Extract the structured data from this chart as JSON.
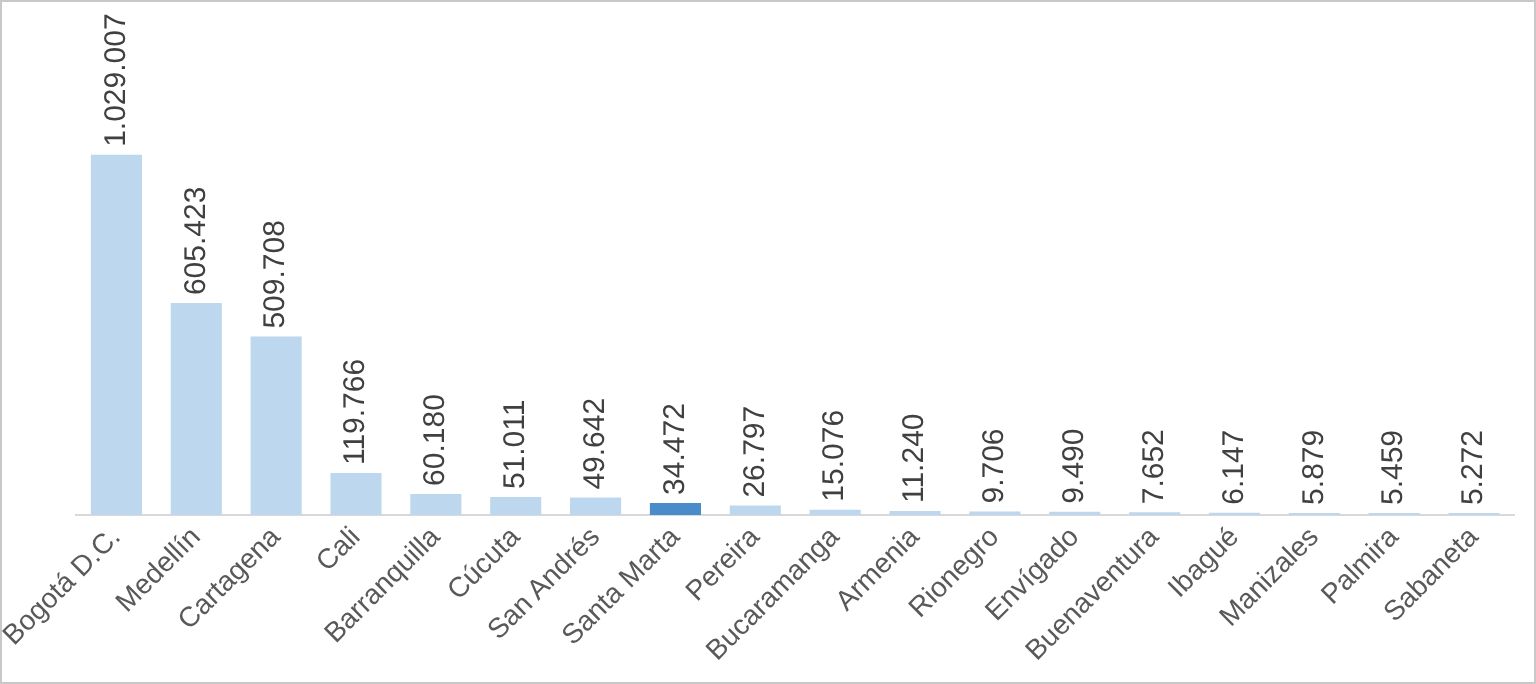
{
  "chart_data": {
    "type": "bar",
    "tick_labels": "x",
    "categories": [
      "Bogotá D.C.",
      "Medellín",
      "Cartagena",
      "Cali",
      "Barranquilla",
      "Cúcuta",
      "San Andrés",
      "Santa Marta",
      "Pereira",
      "Bucaramanga",
      "Armenia",
      "Rionegro",
      "Envígado",
      "Buenaventura",
      "Ibagué",
      "Manizales",
      "Palmira",
      "Sabaneta"
    ],
    "values": [
      1029007,
      605423,
      509708,
      119766,
      60180,
      51011,
      49642,
      34472,
      26797,
      15076,
      11240,
      9706,
      9490,
      7652,
      6147,
      5879,
      5459,
      5272
    ],
    "value_labels": [
      "1.029.007",
      "605.423",
      "509.708",
      "119.766",
      "60.180",
      "51.011",
      "49.642",
      "34.472",
      "26.797",
      "15.076",
      "11.240",
      "9.706",
      "9.490",
      "7.652",
      "6.147",
      "5.879",
      "5.459",
      "5.272"
    ],
    "colors": [
      "#bdd7ee",
      "#bdd7ee",
      "#bdd7ee",
      "#bdd7ee",
      "#bdd7ee",
      "#bdd7ee",
      "#bdd7ee",
      "#4a8bc9",
      "#bdd7ee",
      "#bdd7ee",
      "#bdd7ee",
      "#bdd7ee",
      "#bdd7ee",
      "#bdd7ee",
      "#bdd7ee",
      "#bdd7ee",
      "#bdd7ee",
      "#bdd7ee"
    ],
    "grid": false
  }
}
